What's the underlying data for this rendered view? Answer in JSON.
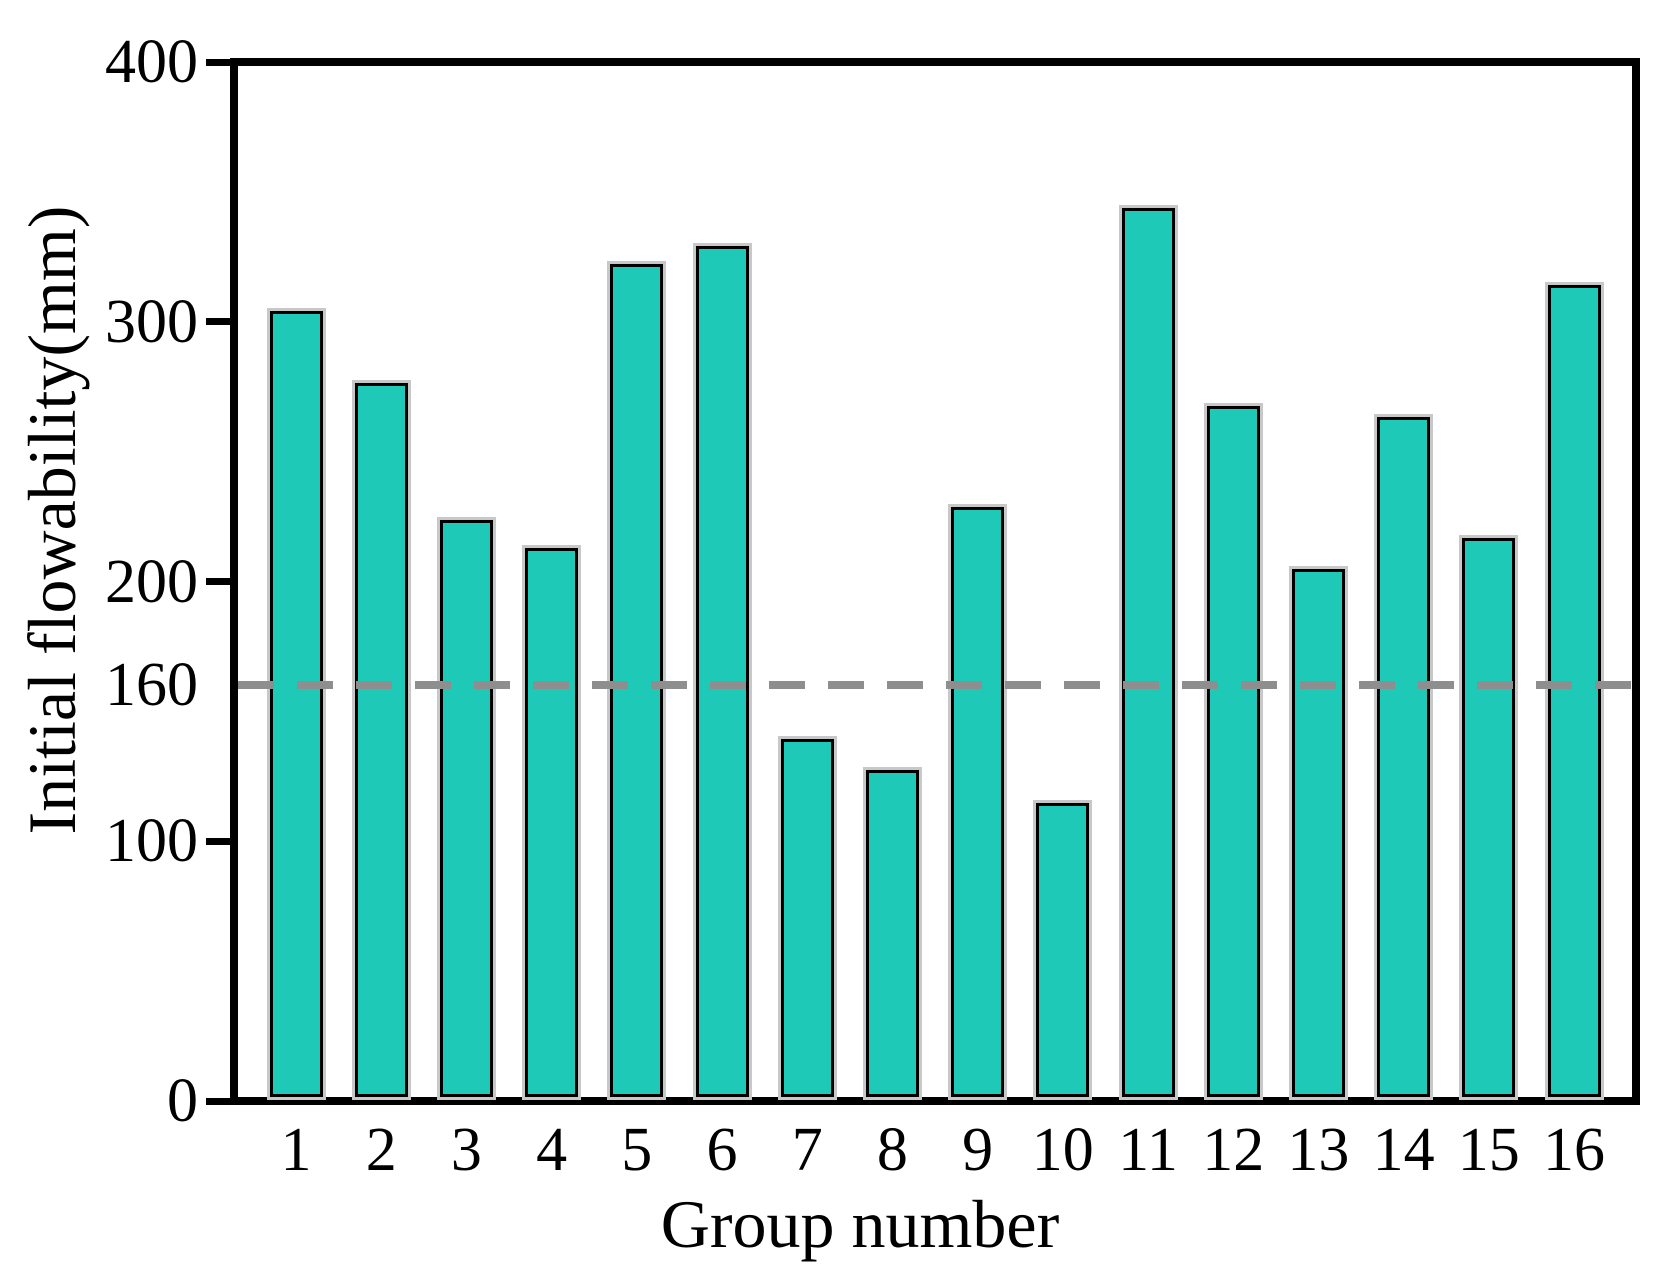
{
  "figure": {
    "xlabel": "Group number",
    "ylabel": "Initial flowability(mm)"
  },
  "chart_data": {
    "type": "bar",
    "title": "",
    "xlabel": "Group number",
    "ylabel": "Initial flowability(mm)",
    "categories": [
      "1",
      "2",
      "3",
      "4",
      "5",
      "6",
      "7",
      "8",
      "9",
      "10",
      "11",
      "12",
      "13",
      "14",
      "15",
      "16"
    ],
    "values": [
      305,
      277,
      224,
      213,
      323,
      330,
      139,
      127,
      229,
      114,
      345,
      268,
      205,
      264,
      217,
      315
    ],
    "ylim": [
      0,
      400
    ],
    "yticks": [
      0,
      100,
      160,
      200,
      300,
      400
    ],
    "grid": "off",
    "legend": "none",
    "bar_color": "#1fc9b8",
    "bar_hatch": "diagonal-forward",
    "bar_edge_color": "#000000",
    "reference_line": {
      "y": 160,
      "style": "dashed",
      "color": "#8e8e8e"
    }
  }
}
